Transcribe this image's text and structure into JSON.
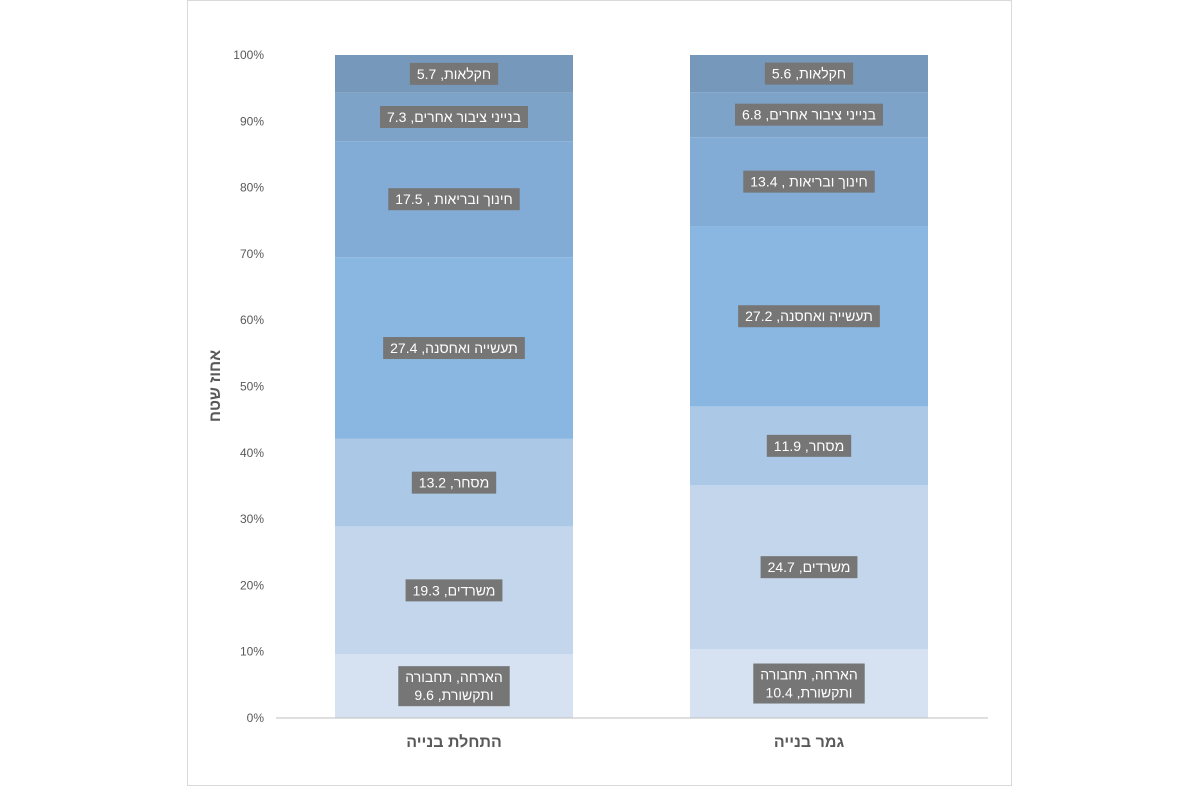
{
  "chart_data": {
    "type": "bar",
    "stacked": "percent",
    "ylabel": "אחוז שטח",
    "xlabel": "",
    "ylim": [
      0,
      100
    ],
    "yticks": [
      "0%",
      "10%",
      "20%",
      "30%",
      "40%",
      "50%",
      "60%",
      "70%",
      "80%",
      "90%",
      "100%"
    ],
    "grid": false,
    "legend": "none",
    "categories": [
      "התחלת בנייה",
      "גמר בנייה"
    ],
    "series": [
      {
        "key": "lodging",
        "color": "#d6e2f1",
        "labels": [
          "הארחה, תחבורה ותקשורת, 9.6",
          "הארחה, תחבורה ותקשורת, 10.4"
        ],
        "label_lines": [
          [
            "הארחה, תחבורה",
            "ותקשורת, 9.6"
          ],
          [
            "הארחה, תחבורה",
            "ותקשורת, 10.4"
          ]
        ],
        "values": [
          9.6,
          10.4
        ]
      },
      {
        "key": "offices",
        "color": "#c3d6ec",
        "labels": [
          "משרדים, 19.3",
          "משרדים, 24.7"
        ],
        "label_lines": [
          [
            "משרדים, 19.3"
          ],
          [
            "משרדים, 24.7"
          ]
        ],
        "values": [
          19.3,
          24.7
        ]
      },
      {
        "key": "commerce",
        "color": "#acc8e7",
        "labels": [
          "מסחר, 13.2",
          "מסחר, 11.9"
        ],
        "label_lines": [
          [
            "מסחר, 13.2"
          ],
          [
            "מסחר, 11.9"
          ]
        ],
        "values": [
          13.2,
          11.9
        ]
      },
      {
        "key": "industry",
        "color": "#8ab7e2",
        "labels": [
          "תעשייה ואחסנה, 27.4",
          "תעשייה ואחסנה, 27.2"
        ],
        "label_lines": [
          [
            "תעשייה ואחסנה, 27.4"
          ],
          [
            "תעשייה ואחסנה, 27.2"
          ]
        ],
        "values": [
          27.4,
          27.2
        ]
      },
      {
        "key": "education",
        "color": "#82acd6",
        "labels": [
          "חינוך ובריאות , 17.5",
          "חינוך ובריאות , 13.4"
        ],
        "label_lines": [
          [
            "חינוך ובריאות , 17.5"
          ],
          [
            "חינוך ובריאות , 13.4"
          ]
        ],
        "values": [
          17.5,
          13.4
        ]
      },
      {
        "key": "public",
        "color": "#7ea3c9",
        "labels": [
          "בנייני ציבור אחרים, 7.3",
          "בנייני ציבור אחרים, 6.8"
        ],
        "label_lines": [
          [
            "בנייני  ציבור אחרים, 7.3"
          ],
          [
            "בנייני  ציבור אחרים, 6.8"
          ]
        ],
        "values": [
          7.3,
          6.8
        ]
      },
      {
        "key": "agriculture",
        "color": "#7598bb",
        "labels": [
          "חקלאות, 5.7",
          "חקלאות, 5.6"
        ],
        "label_lines": [
          [
            "חקלאות, 5.7"
          ],
          [
            "חקלאות, 5.6"
          ]
        ],
        "values": [
          5.7,
          5.6
        ]
      }
    ],
    "label_box_color": "#767676",
    "axis_line_color": "#bfbfbf"
  }
}
